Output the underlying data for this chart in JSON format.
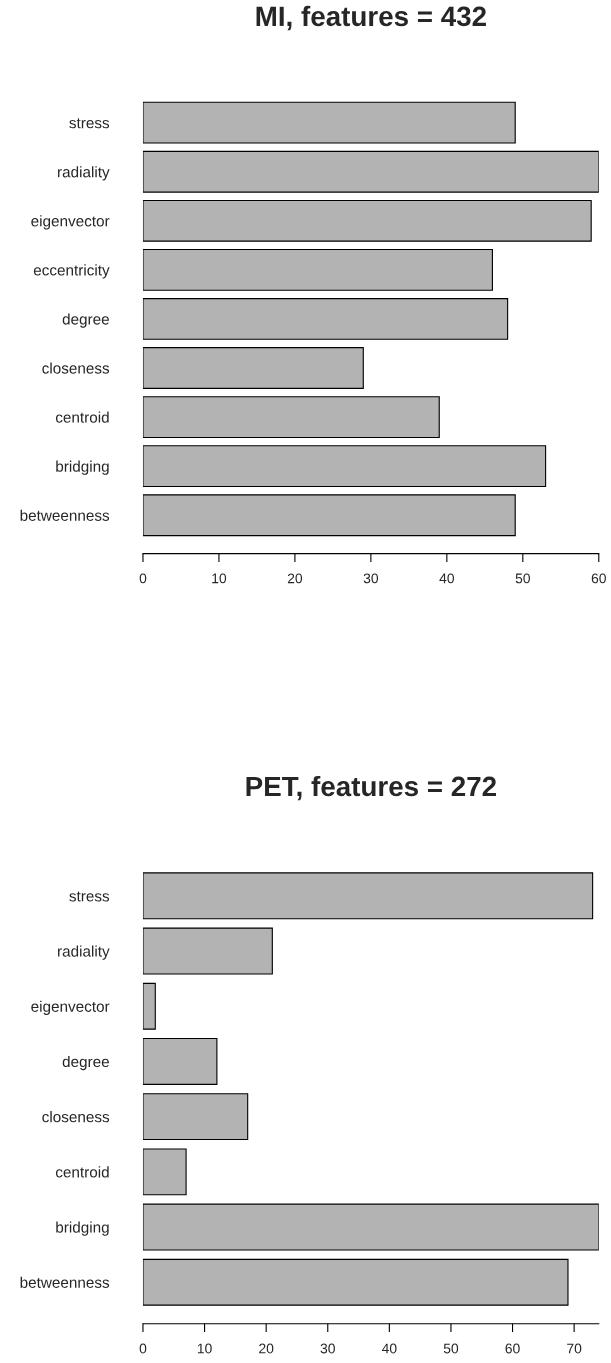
{
  "chart_data": [
    {
      "type": "bar",
      "orientation": "horizontal",
      "title": "MI, features = 432",
      "categories": [
        "stress",
        "radiality",
        "eigenvector",
        "eccentricity",
        "degree",
        "closeness",
        "centroid",
        "bridging",
        "betweenness"
      ],
      "values": [
        49,
        60,
        59,
        46,
        48,
        29,
        39,
        53,
        49
      ],
      "color": "#b3b3b3",
      "xlim": [
        0,
        60
      ],
      "xticks": [
        0,
        10,
        20,
        30,
        40,
        50,
        60
      ],
      "grid": false,
      "legend": false
    },
    {
      "type": "bar",
      "orientation": "horizontal",
      "title": "PET, features = 272",
      "categories": [
        "stress",
        "radiality",
        "eigenvector",
        "degree",
        "closeness",
        "centroid",
        "bridging",
        "betweenness"
      ],
      "values": [
        73,
        21,
        2,
        12,
        17,
        7,
        74,
        69
      ],
      "color": "#b3b3b3",
      "xlim": [
        0,
        74
      ],
      "xticks": [
        0,
        10,
        20,
        30,
        40,
        50,
        60,
        70
      ],
      "grid": false,
      "legend": false
    }
  ]
}
